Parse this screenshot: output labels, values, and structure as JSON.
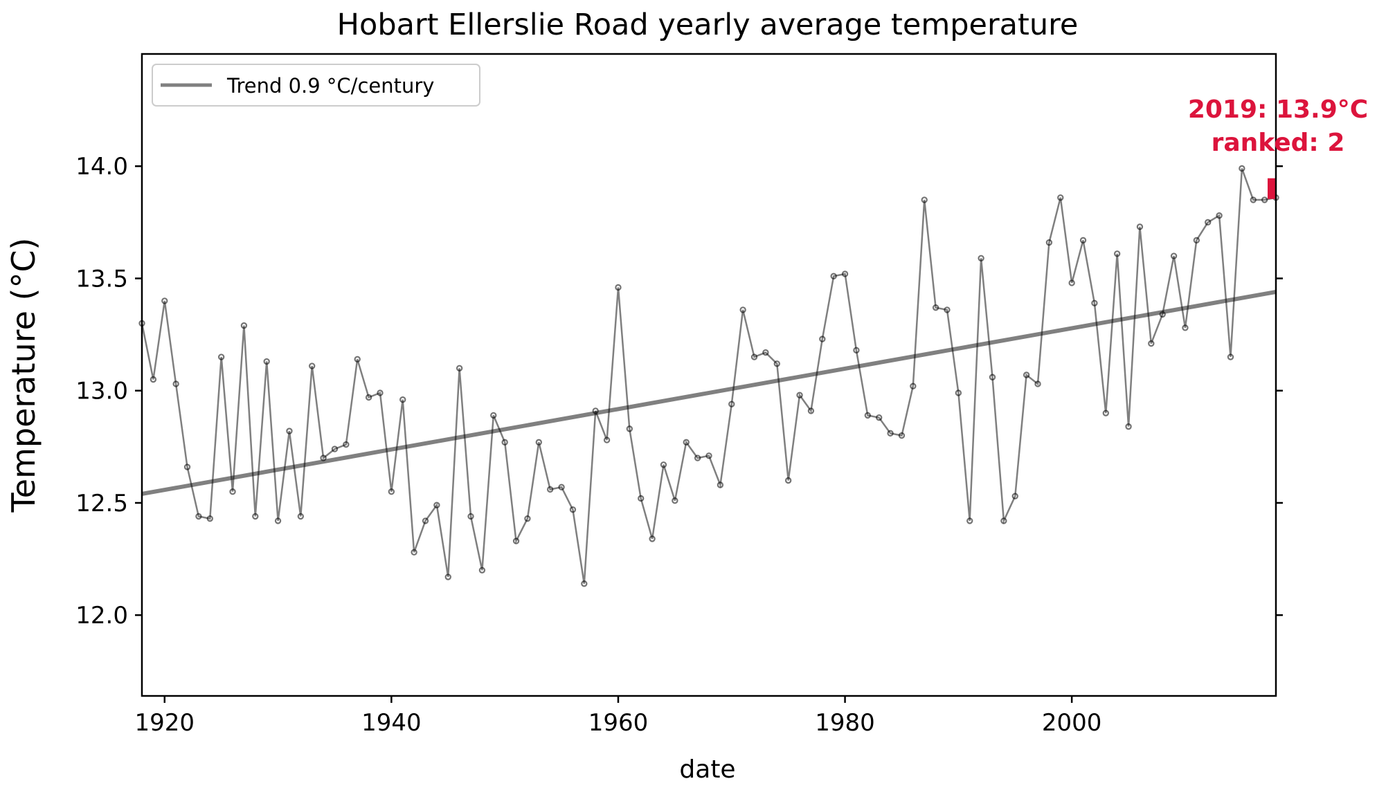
{
  "chart_data": {
    "type": "line",
    "title": "Hobart Ellerslie Road yearly average temperature",
    "xlabel": "date",
    "ylabel": "Temperature (°C)",
    "xlim": [
      1918,
      2018
    ],
    "ylim": [
      11.64,
      14.5
    ],
    "x_ticks": [
      1920,
      1940,
      1960,
      1980,
      2000
    ],
    "y_ticks": [
      12.0,
      12.5,
      13.0,
      13.5,
      14.0
    ],
    "x_tick_labels": [
      "1920",
      "1940",
      "1960",
      "1980",
      "2000"
    ],
    "y_tick_labels": [
      "12.0",
      "12.5",
      "13.0",
      "13.5",
      "14.0"
    ],
    "grid": false,
    "legend_position": "top-left",
    "series": [
      {
        "style": "line-with-markers",
        "color": "#000000",
        "x": [
          1918,
          1919,
          1920,
          1921,
          1922,
          1923,
          1924,
          1925,
          1926,
          1927,
          1928,
          1929,
          1930,
          1931,
          1932,
          1933,
          1934,
          1935,
          1936,
          1937,
          1938,
          1939,
          1940,
          1941,
          1942,
          1943,
          1944,
          1945,
          1946,
          1947,
          1948,
          1949,
          1950,
          1951,
          1952,
          1953,
          1954,
          1955,
          1956,
          1957,
          1958,
          1959,
          1960,
          1961,
          1962,
          1963,
          1964,
          1965,
          1966,
          1967,
          1968,
          1969,
          1970,
          1971,
          1972,
          1973,
          1974,
          1975,
          1976,
          1977,
          1978,
          1979,
          1980,
          1981,
          1982,
          1983,
          1984,
          1985,
          1986,
          1987,
          1988,
          1989,
          1990,
          1991,
          1992,
          1993,
          1994,
          1995,
          1996,
          1997,
          1998,
          1999,
          2000,
          2001,
          2002,
          2003,
          2004,
          2005,
          2006,
          2007,
          2008,
          2009,
          2010,
          2011,
          2012,
          2013,
          2014,
          2015,
          2016,
          2017,
          2018
        ],
        "y": [
          13.3,
          13.05,
          13.4,
          13.03,
          12.66,
          12.44,
          12.43,
          13.15,
          12.55,
          13.29,
          12.44,
          13.13,
          12.42,
          12.82,
          12.44,
          13.11,
          12.7,
          12.74,
          12.76,
          13.14,
          12.97,
          12.99,
          12.55,
          12.96,
          12.28,
          12.42,
          12.49,
          12.17,
          13.1,
          12.44,
          12.2,
          12.89,
          12.77,
          12.33,
          12.43,
          12.77,
          12.56,
          12.57,
          12.47,
          12.14,
          12.91,
          12.78,
          13.46,
          12.83,
          12.52,
          12.34,
          12.67,
          12.51,
          12.77,
          12.7,
          12.71,
          12.58,
          12.94,
          13.36,
          13.15,
          13.17,
          13.12,
          12.6,
          12.98,
          12.91,
          13.23,
          13.51,
          13.52,
          13.18,
          12.89,
          12.88,
          12.81,
          12.8,
          13.02,
          13.85,
          13.37,
          13.36,
          12.99,
          12.42,
          13.59,
          13.06,
          12.42,
          12.53,
          13.07,
          13.03,
          13.66,
          13.86,
          13.48,
          13.67,
          13.39,
          12.9,
          13.61,
          12.84,
          13.73,
          13.21,
          13.34,
          13.6,
          13.28,
          13.67,
          13.75,
          13.78,
          13.15,
          13.99,
          13.85,
          13.85,
          13.86
        ]
      },
      {
        "name": "Trend 0.9 °C/century",
        "style": "line",
        "color": "#808080",
        "x": [
          1918,
          2018
        ],
        "y": [
          12.54,
          13.44
        ]
      }
    ],
    "highlight": {
      "year": 2019,
      "value": 13.9,
      "color": "#dc143c",
      "label_line1": "2019: 13.9°C",
      "label_line2": "ranked: 2"
    }
  }
}
